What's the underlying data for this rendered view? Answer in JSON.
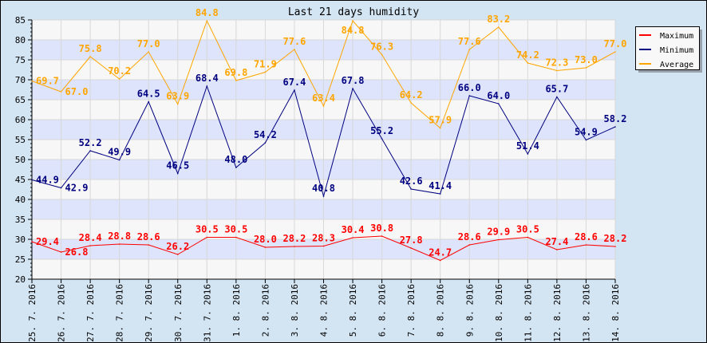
{
  "chart_data": {
    "type": "line",
    "title": "Last 21 days humidity",
    "xlabel": "",
    "ylabel": "",
    "ylim": [
      20,
      85
    ],
    "yticks": [
      20,
      25,
      30,
      35,
      40,
      45,
      50,
      55,
      60,
      65,
      70,
      75,
      80,
      85
    ],
    "grid": true,
    "legend_position": "right",
    "categories": [
      "25. 7. 2016",
      "26. 7. 2016",
      "27. 7. 2016",
      "28. 7. 2016",
      "29. 7. 2016",
      "30. 7. 2016",
      "31. 7. 2016",
      "1. 8. 2016",
      "2. 8. 2016",
      "3. 8. 2016",
      "4. 8. 2016",
      "5. 8. 2016",
      "6. 8. 2016",
      "7. 8. 2016",
      "8. 8. 2016",
      "9. 8. 2016",
      "10. 8. 2016",
      "11. 8. 2016",
      "12. 8. 2016",
      "13. 8. 2016",
      "14. 8. 2016"
    ],
    "series": [
      {
        "name": "Maximum",
        "color": "#ff0000",
        "values": [
          29.4,
          26.8,
          28.4,
          28.8,
          28.6,
          26.2,
          30.5,
          30.5,
          28.0,
          28.2,
          28.3,
          30.4,
          30.8,
          27.8,
          24.7,
          28.6,
          29.9,
          30.5,
          27.4,
          28.6,
          28.2
        ]
      },
      {
        "name": "Minimum",
        "color": "#000080",
        "values": [
          44.9,
          42.9,
          52.2,
          49.9,
          64.5,
          46.5,
          68.4,
          48.0,
          54.2,
          67.4,
          40.8,
          67.8,
          55.2,
          42.6,
          41.4,
          66.0,
          64.0,
          51.4,
          65.7,
          54.9,
          58.2
        ]
      },
      {
        "name": "Average",
        "color": "#ffa500",
        "values": [
          69.7,
          67.0,
          75.8,
          70.2,
          77.0,
          63.9,
          84.8,
          69.8,
          71.9,
          77.6,
          63.4,
          84.8,
          76.3,
          64.2,
          57.9,
          77.6,
          83.2,
          74.2,
          72.3,
          73.0,
          77.0
        ]
      }
    ]
  }
}
